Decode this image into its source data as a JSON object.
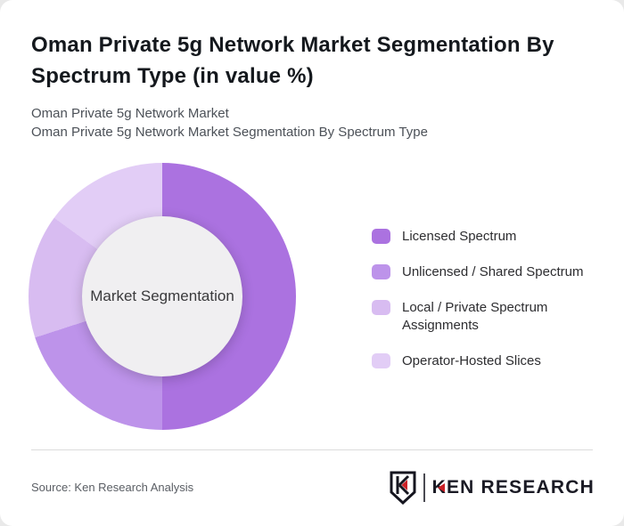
{
  "card": {
    "title": "Oman Private 5g Network Market Segmentation By Spectrum Type (in value %)",
    "subtitle_line1": "Oman Private 5g Network Market",
    "subtitle_line2": "Oman Private 5g Network Market Segmentation By Spectrum Type"
  },
  "chart_data": {
    "type": "pie",
    "variant": "donut",
    "title": "Oman Private 5g Network Market Segmentation By Spectrum Type (in value %)",
    "center_label": "Market Segmentation",
    "labels": [
      "Licensed Spectrum",
      "Unlicensed / Shared Spectrum",
      "Local / Private Spectrum Assignments",
      "Operator-Hosted Slices"
    ],
    "values": [
      50,
      20,
      15,
      15
    ],
    "unit": "%",
    "colors": [
      "#ab72e0",
      "#bd93ea",
      "#d8bcf1",
      "#e2cdf6"
    ],
    "center_bg": "#f0eff1",
    "start_angle_deg": 0,
    "direction": "clockwise",
    "inner_radius_ratio": 0.6,
    "legend_position": "right",
    "values_note": "estimated from arc angles; no data labels shown"
  },
  "footer": {
    "source": "Source: Ken Research Analysis",
    "logo": {
      "brand": "KEN RESEARCH",
      "shield_letter": "K",
      "accent_color": "#cb2026",
      "text_color": "#1a1a24"
    }
  }
}
